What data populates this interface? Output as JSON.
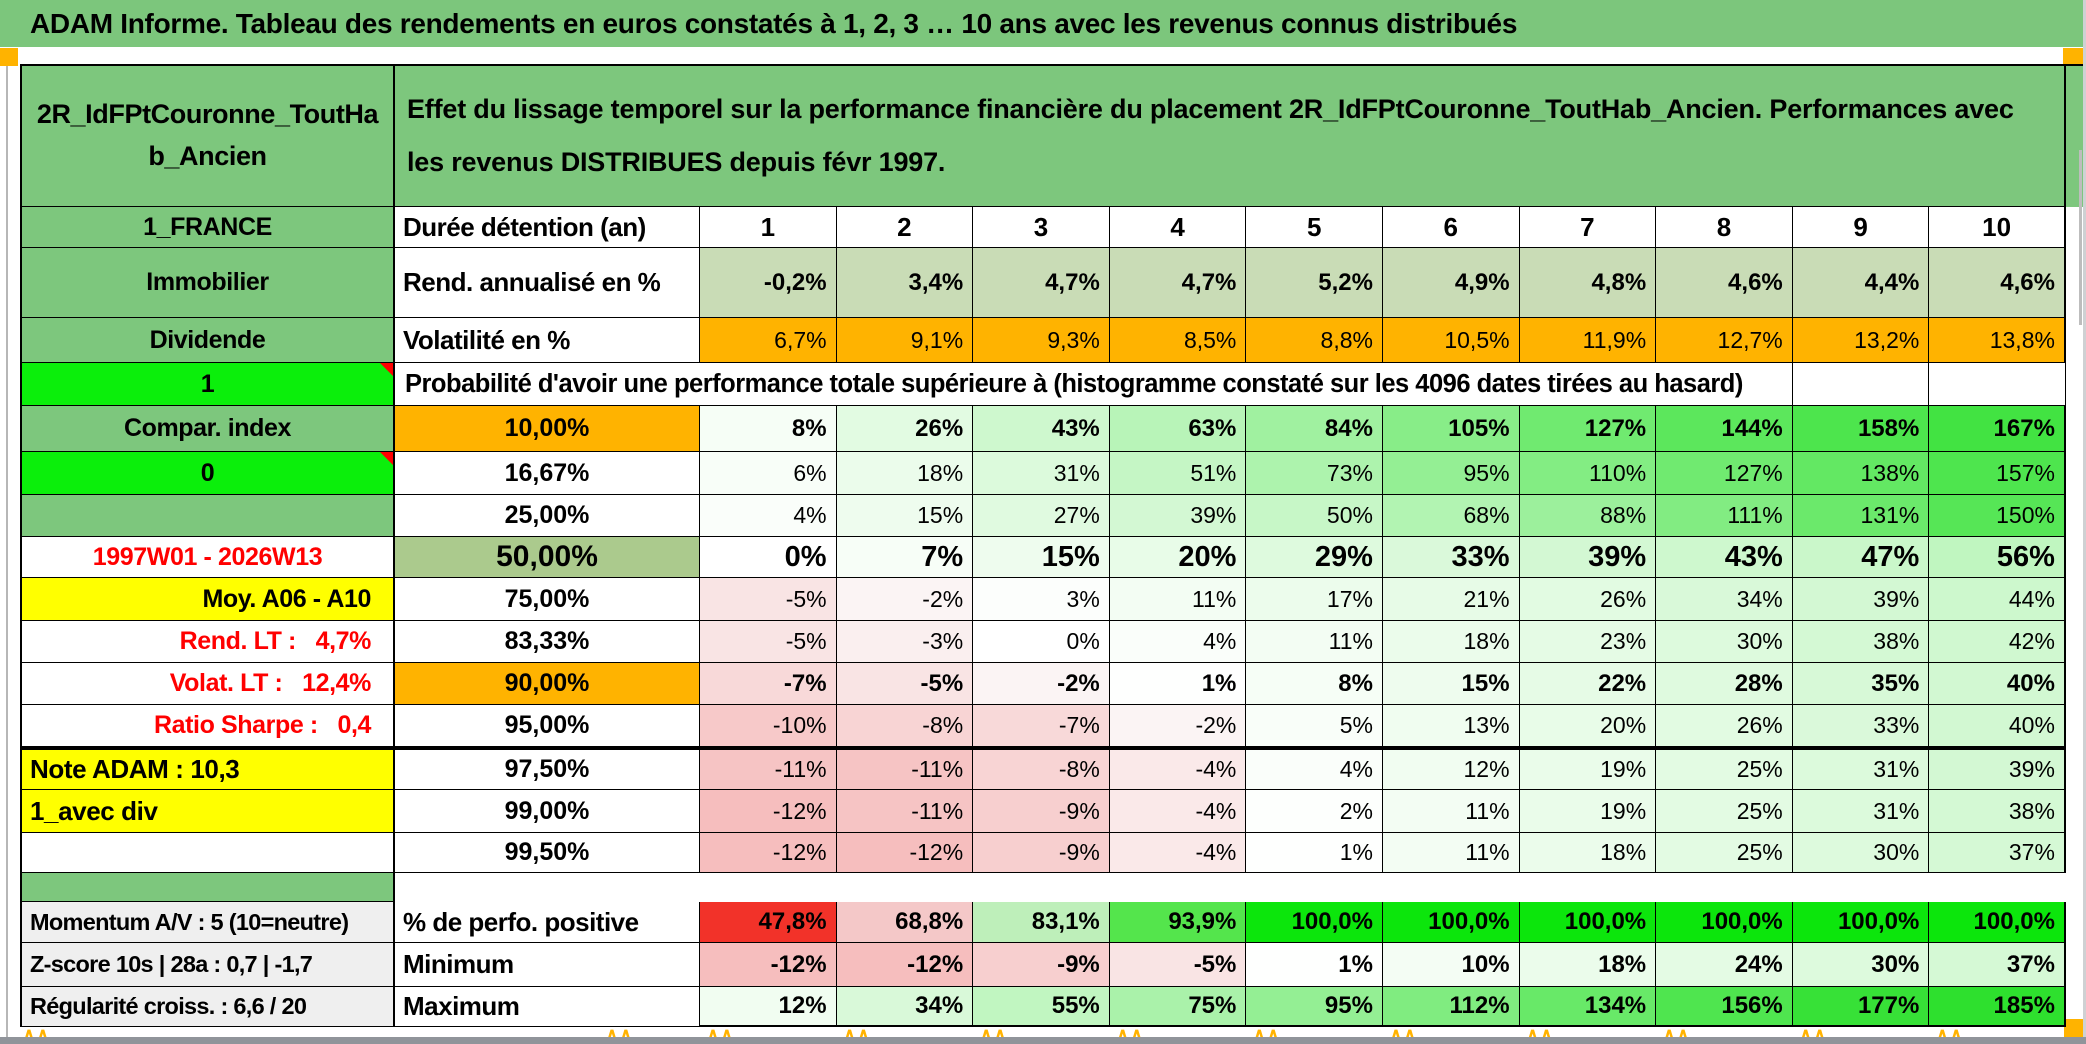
{
  "title": "ADAM Informe. Tableau des rendements en euros constatés à 1, 2, 3 … 10 ans avec les revenus connus distribués",
  "header": {
    "left": "2R_IdFPtCouronne_ToutHab_Ancien",
    "right": "Effet du lissage temporel sur la performance financière du placement 2R_IdFPtCouronne_ToutHab_Ancien. Performances avec les revenus DISTRIBUES depuis févr 1997."
  },
  "colors": {
    "banner_green": "#7CC67C",
    "label_green": "#7DC77D",
    "bright_green": "#0BEF0B",
    "orange": "#FFB300",
    "yellow": "#FFFF00",
    "sage": "#C9DCB6",
    "olive": "#ABCA8D",
    "gray_label": "#EFEFEF",
    "red_text": "#FF0000",
    "perfo_red": "#F23229",
    "perfo_pink": "#F4C8C8",
    "perfo_lightgreen": "#BEEFBA",
    "perfo_green": "#54E54C",
    "perfo_full": "#0CE60C",
    "bottom_bar": "#90949A"
  },
  "table": {
    "rows": [
      {
        "id": "duree",
        "label": "1_FRANCE",
        "labelKind": "green",
        "head": "Durée détention (an)",
        "headKind": "left",
        "cells": [
          "1",
          "2",
          "3",
          "4",
          "5",
          "6",
          "7",
          "8",
          "9",
          "10"
        ],
        "cellKind": "plain",
        "bold": true
      },
      {
        "id": "rend",
        "label": "Immobilier",
        "labelKind": "green",
        "head": "Rend. annualisé en %",
        "headKind": "left",
        "cells": [
          "-0,2%",
          "3,4%",
          "4,7%",
          "4,7%",
          "5,2%",
          "4,9%",
          "4,8%",
          "4,6%",
          "4,4%",
          "4,6%"
        ],
        "cellKind": "sage",
        "bold": true
      },
      {
        "id": "volat",
        "label": "Dividende",
        "labelKind": "green",
        "head": "Volatilité en %",
        "headKind": "left",
        "cells": [
          "6,7%",
          "9,1%",
          "9,3%",
          "8,5%",
          "8,8%",
          "10,5%",
          "11,9%",
          "12,7%",
          "13,2%",
          "13,8%"
        ],
        "cellKind": "orange",
        "bold": false
      },
      {
        "id": "proba",
        "label": "1",
        "labelKind": "bright",
        "marker": true,
        "span_text": "Probabilité d'avoir une performance totale supérieure à (histogramme constaté sur les 4096 dates tirées au hasard)"
      },
      {
        "id": "p10",
        "label": "Compar. index",
        "labelKind": "green",
        "head": "10,00%",
        "headKind": "orange",
        "values": [
          8,
          26,
          43,
          63,
          84,
          105,
          127,
          144,
          158,
          167
        ],
        "bold": true
      },
      {
        "id": "p16",
        "label": "0",
        "labelKind": "bright",
        "marker": true,
        "head": "16,67%",
        "headKind": "center",
        "values": [
          6,
          18,
          31,
          51,
          73,
          95,
          110,
          127,
          138,
          157
        ]
      },
      {
        "id": "p25",
        "label": "",
        "labelKind": "green",
        "head": "25,00%",
        "headKind": "center",
        "values": [
          4,
          15,
          27,
          39,
          50,
          68,
          88,
          111,
          131,
          150
        ]
      },
      {
        "id": "p50",
        "label": "1997W01 - 2026W13",
        "labelKind": "redc",
        "head": "50,00%",
        "headKind": "olive",
        "values": [
          0,
          7,
          15,
          20,
          29,
          33,
          39,
          43,
          47,
          56
        ],
        "bold": true,
        "big": true
      },
      {
        "id": "p75",
        "label": "Moy. A06 - A10",
        "labelKind": "yellowr",
        "head": "75,00%",
        "headKind": "center",
        "values": [
          -5,
          -2,
          3,
          11,
          17,
          21,
          26,
          34,
          39,
          44
        ]
      },
      {
        "id": "p83",
        "label": "Rend. LT :   4,7%",
        "labelKind": "redr",
        "head": "83,33%",
        "headKind": "center",
        "values": [
          -5,
          -3,
          0,
          4,
          11,
          18,
          23,
          30,
          38,
          42
        ]
      },
      {
        "id": "p90",
        "label": "Volat. LT :   12,4%",
        "labelKind": "redr",
        "head": "90,00%",
        "headKind": "orange",
        "values": [
          -7,
          -5,
          -2,
          1,
          8,
          15,
          22,
          28,
          35,
          40
        ],
        "bold": true
      },
      {
        "id": "p95",
        "label": "Ratio Sharpe :   0,4",
        "labelKind": "redr",
        "head": "95,00%",
        "headKind": "center",
        "values": [
          -10,
          -8,
          -7,
          -2,
          5,
          13,
          20,
          26,
          33,
          40
        ]
      },
      {
        "id": "p975",
        "label": "Note ADAM : 10,3",
        "labelKind": "yellowl",
        "head": "97,50%",
        "headKind": "center",
        "values": [
          -11,
          -11,
          -8,
          -4,
          4,
          12,
          19,
          25,
          31,
          39
        ],
        "thickTop": true
      },
      {
        "id": "p99",
        "label": "1_avec div",
        "labelKind": "yellowl",
        "head": "99,00%",
        "headKind": "center",
        "values": [
          -12,
          -11,
          -9,
          -4,
          2,
          11,
          19,
          25,
          31,
          38
        ]
      },
      {
        "id": "p995",
        "label": "",
        "labelKind": "white",
        "head": "99,50%",
        "headKind": "center",
        "values": [
          -12,
          -12,
          -9,
          -4,
          1,
          11,
          18,
          25,
          30,
          37
        ]
      },
      {
        "id": "spacer",
        "spacer": true
      },
      {
        "id": "perfo",
        "label": "Momentum A/V : 5 (10=neutre)",
        "labelKind": "gray",
        "head": "% de perfo. positive",
        "headKind": "left",
        "cells": [
          "47,8%",
          "68,8%",
          "83,1%",
          "93,9%",
          "100,0%",
          "100,0%",
          "100,0%",
          "100,0%",
          "100,0%",
          "100,0%"
        ],
        "cellKind": "perfo",
        "bold": true
      },
      {
        "id": "min",
        "label": "Z-score 10s | 28a : 0,7 | -1,7",
        "labelKind": "gray",
        "head": "Minimum",
        "headKind": "left",
        "values": [
          -12,
          -12,
          -9,
          -5,
          1,
          10,
          18,
          24,
          30,
          37
        ],
        "bold": true
      },
      {
        "id": "max",
        "label": "Régularité croiss. : 6,6 / 20",
        "labelKind": "gray",
        "head": "Maximum",
        "headKind": "left",
        "values": [
          12,
          34,
          55,
          75,
          95,
          112,
          134,
          156,
          177,
          185
        ],
        "bold": true
      }
    ]
  }
}
